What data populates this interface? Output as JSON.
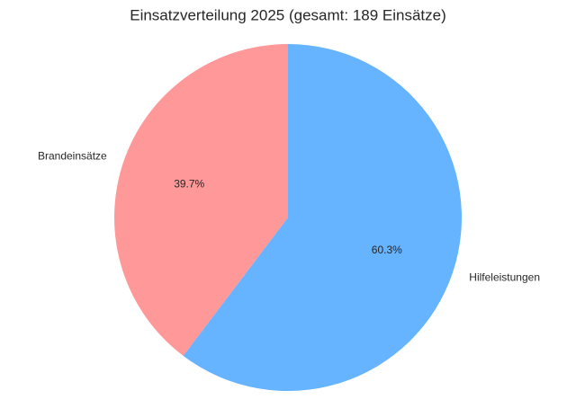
{
  "chart_data": {
    "type": "pie",
    "title": "Einsatzverteilung 2025 (gesamt: 189 Einsätze)",
    "categories": [
      "Brandeinsätze",
      "Hilfeleistungen"
    ],
    "values": [
      39.7,
      60.3
    ],
    "value_labels": [
      "39.7%",
      "60.3%"
    ],
    "colors": [
      "#ff9999",
      "#66b3ff"
    ]
  }
}
